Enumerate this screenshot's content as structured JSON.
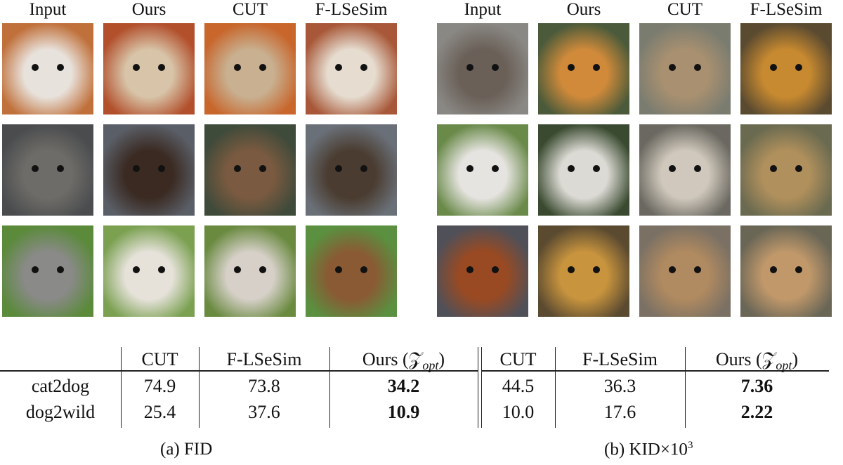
{
  "panel_left": {
    "headers": [
      "Input",
      "Ours",
      "CUT",
      "F-LSeSim"
    ],
    "rows": [
      {
        "colors": [
          [
            "#c0703a",
            "#e8e2dc"
          ],
          [
            "#b2502c",
            "#d8c4a8"
          ],
          [
            "#c8662c",
            "#c8b090"
          ],
          [
            "#a85838",
            "#e6ddd0"
          ]
        ]
      },
      {
        "colors": [
          [
            "#4a4c4e",
            "#6e6c68"
          ],
          [
            "#5a5e66",
            "#3a2a22"
          ],
          [
            "#3e4a3a",
            "#7a5a40"
          ],
          [
            "#6a7078",
            "#4a3c30"
          ]
        ]
      },
      {
        "colors": [
          [
            "#5a8a3a",
            "#8a8a88"
          ],
          [
            "#7aa050",
            "#e6e2da"
          ],
          [
            "#6a8a40",
            "#d6d0c8"
          ],
          [
            "#5a9040",
            "#8a5a34"
          ]
        ]
      }
    ]
  },
  "panel_right": {
    "headers": [
      "Input",
      "Ours",
      "CUT",
      "F-LSeSim"
    ],
    "rows": [
      {
        "colors": [
          [
            "#8a8884",
            "#6a6058"
          ],
          [
            "#4a5a3a",
            "#d08a3a"
          ],
          [
            "#7a7c70",
            "#a89070"
          ],
          [
            "#5a4a30",
            "#c88a30"
          ]
        ]
      },
      {
        "colors": [
          [
            "#6a8a4a",
            "#e6e4e0"
          ],
          [
            "#3a4a30",
            "#dcdad4"
          ],
          [
            "#6a6860",
            "#d0c8bc"
          ],
          [
            "#6a6a50",
            "#b0905c"
          ]
        ]
      },
      {
        "colors": [
          [
            "#505058",
            "#9a4a22"
          ],
          [
            "#5a4a30",
            "#c8943e"
          ],
          [
            "#7a7064",
            "#b08a60"
          ],
          [
            "#6a6656",
            "#c0986a"
          ]
        ]
      }
    ]
  },
  "table": {
    "headers": [
      "CUT",
      "F-LSeSim",
      "Ours (𝒵",
      "opt",
      ")",
      "CUT",
      "F-LSeSim",
      "Ours (𝒵",
      "opt",
      ")"
    ],
    "rows": [
      {
        "label": "cat2dog",
        "fid": [
          "74.9",
          "73.8",
          "34.2"
        ],
        "kid": [
          "44.5",
          "36.3",
          "7.36"
        ]
      },
      {
        "label": "dog2wild",
        "fid": [
          "25.4",
          "37.6",
          "10.9"
        ],
        "kid": [
          "10.0",
          "17.6",
          "2.22"
        ]
      }
    ]
  },
  "captions": {
    "a": "(a) FID",
    "b": "(b) KID×10",
    "b_exp": "3"
  }
}
